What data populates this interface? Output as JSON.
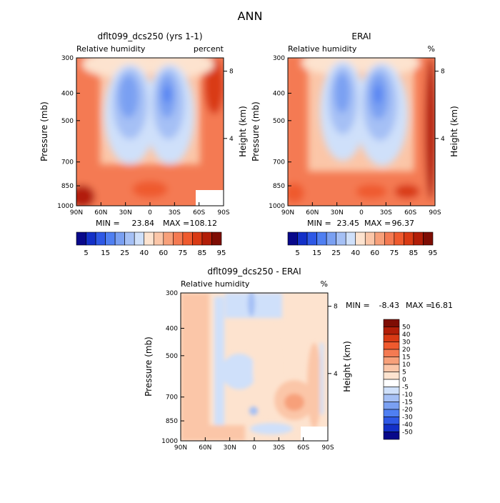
{
  "page_title": "ANN",
  "chart_data": [
    {
      "type": "heatmap",
      "title": "dflt099_dcs250 (yrs 1-1)",
      "variable_label": "Relative humidity",
      "units_label": "percent",
      "ylabel_left": "Pressure (mb)",
      "ylabel_right": "Height (km)",
      "x_ticks": [
        "90N",
        "60N",
        "30N",
        "0",
        "30S",
        "60S",
        "90S"
      ],
      "y_ticks": [
        "300",
        "400",
        "500",
        "700",
        "850",
        "1000"
      ],
      "right_ticks": [
        "8",
        "4"
      ],
      "ylim": [
        1000,
        300
      ],
      "min_label": "MIN =",
      "min_value": "23.84",
      "max_label": "MAX =",
      "max_value": "108.12",
      "colorbar_labels": [
        "5",
        "15",
        "25",
        "40",
        "60",
        "75",
        "85",
        "95"
      ],
      "colorbar_colors": [
        "#08088a",
        "#1330c8",
        "#2e58e6",
        "#4f7ff2",
        "#7aa0f2",
        "#a5c0f5",
        "#cfe0fa",
        "#fde3cf",
        "#fbc6a8",
        "#f7a07a",
        "#f47a52",
        "#ef5a2e",
        "#d93a14",
        "#b21e08",
        "#7e0d04"
      ]
    },
    {
      "type": "heatmap",
      "title": "ERAI",
      "variable_label": "Relative humidity",
      "units_label": "%",
      "ylabel_left": "Pressure (mb)",
      "ylabel_right": "Height (km)",
      "x_ticks": [
        "90N",
        "60N",
        "30N",
        "0",
        "30S",
        "60S",
        "90S"
      ],
      "y_ticks": [
        "300",
        "400",
        "500",
        "700",
        "850",
        "1000"
      ],
      "right_ticks": [
        "8",
        "4"
      ],
      "ylim": [
        1000,
        300
      ],
      "min_label": "MIN =",
      "min_value": "23.45",
      "max_label": "MAX =",
      "max_value": "96.37",
      "colorbar_labels": [
        "5",
        "15",
        "25",
        "40",
        "60",
        "75",
        "85",
        "95"
      ],
      "colorbar_colors": [
        "#08088a",
        "#1330c8",
        "#2e58e6",
        "#4f7ff2",
        "#7aa0f2",
        "#a5c0f5",
        "#cfe0fa",
        "#fde3cf",
        "#fbc6a8",
        "#f7a07a",
        "#f47a52",
        "#ef5a2e",
        "#d93a14",
        "#b21e08",
        "#7e0d04"
      ]
    },
    {
      "type": "heatmap",
      "title": "dflt099_dcs250 - ERAI",
      "variable_label": "Relative humidity",
      "units_label": "%",
      "ylabel_left": "Pressure (mb)",
      "ylabel_right": "Height (km)",
      "x_ticks": [
        "90N",
        "60N",
        "30N",
        "0",
        "30S",
        "60S",
        "90S"
      ],
      "y_ticks": [
        "300",
        "400",
        "500",
        "700",
        "850",
        "1000"
      ],
      "right_ticks": [
        "8",
        "4"
      ],
      "ylim": [
        1000,
        300
      ],
      "min_label": "MIN =",
      "min_value": "-8.43",
      "max_label": "MAX =",
      "max_value": "16.81",
      "colorbar_labels": [
        "50",
        "40",
        "30",
        "20",
        "15",
        "10",
        "5",
        "0",
        "-5",
        "-10",
        "-15",
        "-20",
        "-30",
        "-40",
        "-50"
      ],
      "colorbar_colors": [
        "#7e0d04",
        "#b21e08",
        "#d93a14",
        "#ef5a2e",
        "#f47a52",
        "#f7a07a",
        "#fbc6a8",
        "#fde3cf",
        "#ffffff",
        "#cfe0fa",
        "#a5c0f5",
        "#7aa0f2",
        "#4f7ff2",
        "#2e58e6",
        "#1330c8",
        "#08088a"
      ]
    }
  ]
}
